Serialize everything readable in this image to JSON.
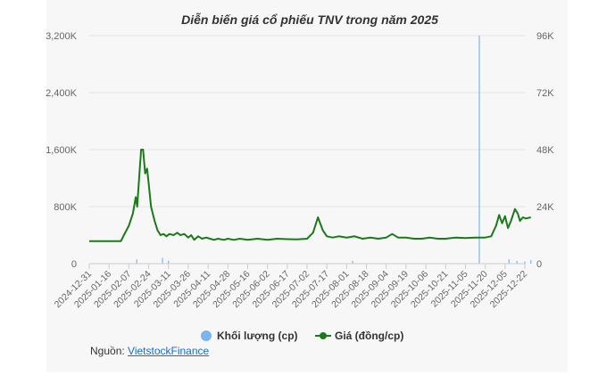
{
  "chart_data": {
    "type": "line",
    "title": "Diễn biến giá cổ phiếu TNV trong năm 2025",
    "y_left": {
      "ticks": [
        "0",
        "800K",
        "1,600K",
        "2,400K",
        "3,200K"
      ],
      "range": [
        0,
        3200000
      ]
    },
    "y_right": {
      "ticks": [
        "0",
        "24K",
        "48K",
        "72K",
        "96K"
      ],
      "range": [
        0,
        96000
      ]
    },
    "x_ticks": [
      "2024-12-31",
      "2025-01-16",
      "2025-02-07",
      "2025-02-24",
      "2025-03-11",
      "2025-03-26",
      "2025-04-11",
      "2025-04-28",
      "2025-05-16",
      "2025-06-02",
      "2025-06-17",
      "2025-07-02",
      "2025-07-17",
      "2025-08-01",
      "2025-08-18",
      "2025-09-04",
      "2025-09-19",
      "2025-10-06",
      "2025-10-21",
      "2025-11-05",
      "2025-11-20",
      "2025-12-05",
      "2025-12-22"
    ],
    "series": [
      {
        "name": "Khối lượng (cp)",
        "type": "column",
        "axis": "left",
        "color": "#7cb5ec",
        "points": [
          [
            2.4,
            60000
          ],
          [
            3.7,
            80000
          ],
          [
            4.0,
            40000
          ],
          [
            13.3,
            40000
          ],
          [
            19.7,
            3200000
          ],
          [
            21.2,
            60000
          ],
          [
            21.6,
            40000
          ],
          [
            22.0,
            30000
          ],
          [
            22.3,
            50000
          ]
        ]
      },
      {
        "name": "Giá (đồng/cp)",
        "type": "line",
        "axis": "right",
        "color": "#1a7a1a",
        "points": [
          [
            0,
            9500
          ],
          [
            1.0,
            9500
          ],
          [
            1.6,
            9500
          ],
          [
            1.75,
            12000
          ],
          [
            2.0,
            16000
          ],
          [
            2.2,
            21000
          ],
          [
            2.35,
            28000
          ],
          [
            2.42,
            24000
          ],
          [
            2.5,
            34000
          ],
          [
            2.62,
            48000
          ],
          [
            2.72,
            48000
          ],
          [
            2.82,
            38000
          ],
          [
            2.92,
            40000
          ],
          [
            3.0,
            34000
          ],
          [
            3.12,
            24000
          ],
          [
            3.3,
            18000
          ],
          [
            3.45,
            14000
          ],
          [
            3.6,
            12000
          ],
          [
            3.75,
            12500
          ],
          [
            3.9,
            11500
          ],
          [
            4.05,
            12500
          ],
          [
            4.25,
            12000
          ],
          [
            4.45,
            13000
          ],
          [
            4.6,
            12000
          ],
          [
            4.8,
            12500
          ],
          [
            5.0,
            11000
          ],
          [
            5.15,
            12000
          ],
          [
            5.3,
            10000
          ],
          [
            5.5,
            11500
          ],
          [
            5.7,
            10500
          ],
          [
            5.9,
            11000
          ],
          [
            6.1,
            10500
          ],
          [
            6.3,
            10000
          ],
          [
            6.5,
            10500
          ],
          [
            6.8,
            10000
          ],
          [
            7.0,
            10500
          ],
          [
            7.3,
            10000
          ],
          [
            7.6,
            10500
          ],
          [
            8.0,
            10000
          ],
          [
            8.5,
            10500
          ],
          [
            9.0,
            10000
          ],
          [
            9.5,
            10500
          ],
          [
            10.0,
            10300
          ],
          [
            10.5,
            10200
          ],
          [
            11.0,
            10500
          ],
          [
            11.3,
            13000
          ],
          [
            11.55,
            19500
          ],
          [
            11.8,
            14000
          ],
          [
            12.0,
            11500
          ],
          [
            12.3,
            11000
          ],
          [
            12.6,
            11500
          ],
          [
            13.0,
            11000
          ],
          [
            13.4,
            11500
          ],
          [
            13.8,
            10500
          ],
          [
            14.2,
            11000
          ],
          [
            14.6,
            10500
          ],
          [
            15.0,
            11000
          ],
          [
            15.3,
            12500
          ],
          [
            15.6,
            11000
          ],
          [
            16.0,
            11000
          ],
          [
            16.4,
            10500
          ],
          [
            16.8,
            10500
          ],
          [
            17.2,
            11000
          ],
          [
            17.6,
            10500
          ],
          [
            18.0,
            10500
          ],
          [
            18.5,
            11000
          ],
          [
            19.0,
            10800
          ],
          [
            19.5,
            11000
          ],
          [
            20.0,
            11000
          ],
          [
            20.3,
            11500
          ],
          [
            20.55,
            16000
          ],
          [
            20.7,
            20500
          ],
          [
            20.85,
            17000
          ],
          [
            21.0,
            20000
          ],
          [
            21.15,
            15000
          ],
          [
            21.3,
            18000
          ],
          [
            21.5,
            23000
          ],
          [
            21.65,
            21000
          ],
          [
            21.75,
            18000
          ],
          [
            21.9,
            19500
          ],
          [
            22.05,
            19000
          ],
          [
            22.3,
            19500
          ]
        ]
      }
    ],
    "legend_position": "bottom-center",
    "grid": true,
    "source_label": "Nguồn:",
    "source_link": "VietstockFinance"
  }
}
